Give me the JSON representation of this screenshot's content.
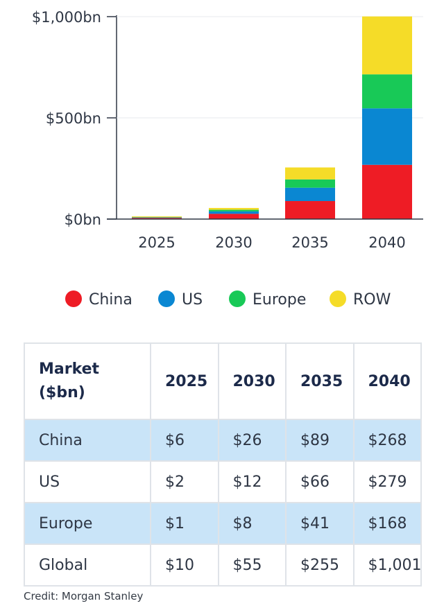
{
  "chart_data": {
    "type": "bar",
    "stacked": true,
    "categories": [
      "2025",
      "2030",
      "2035",
      "2040"
    ],
    "series": [
      {
        "name": "China",
        "color": "#ee1c25",
        "values": [
          6,
          26,
          89,
          268
        ]
      },
      {
        "name": "US",
        "color": "#0a87d2",
        "values": [
          2,
          12,
          66,
          279
        ]
      },
      {
        "name": "Europe",
        "color": "#18c957",
        "values": [
          1,
          8,
          41,
          168
        ]
      },
      {
        "name": "ROW",
        "color": "#f5dc28",
        "values": [
          1,
          9,
          59,
          286
        ]
      }
    ],
    "ylim": [
      0,
      1000
    ],
    "yticks": [
      {
        "value": 0,
        "label": "$0bn"
      },
      {
        "value": 500,
        "label": "$500bn"
      },
      {
        "value": 1000,
        "label": "$1,000bn"
      }
    ],
    "legend": "bottom"
  },
  "table": {
    "header_line1": "Market",
    "header_line2": "($bn)",
    "columns": [
      "2025",
      "2030",
      "2035",
      "2040"
    ],
    "rows": [
      {
        "label": "China",
        "cells": [
          "$6",
          "$26",
          "$89",
          "$268"
        ]
      },
      {
        "label": "US",
        "cells": [
          "$2",
          "$12",
          "$66",
          "$279"
        ]
      },
      {
        "label": "Europe",
        "cells": [
          "$1",
          "$8",
          "$41",
          "$168"
        ]
      },
      {
        "label": "Global",
        "cells": [
          "$10",
          "$55",
          "$255",
          "$1,001"
        ]
      }
    ]
  },
  "credit": "Credit: Morgan Stanley"
}
